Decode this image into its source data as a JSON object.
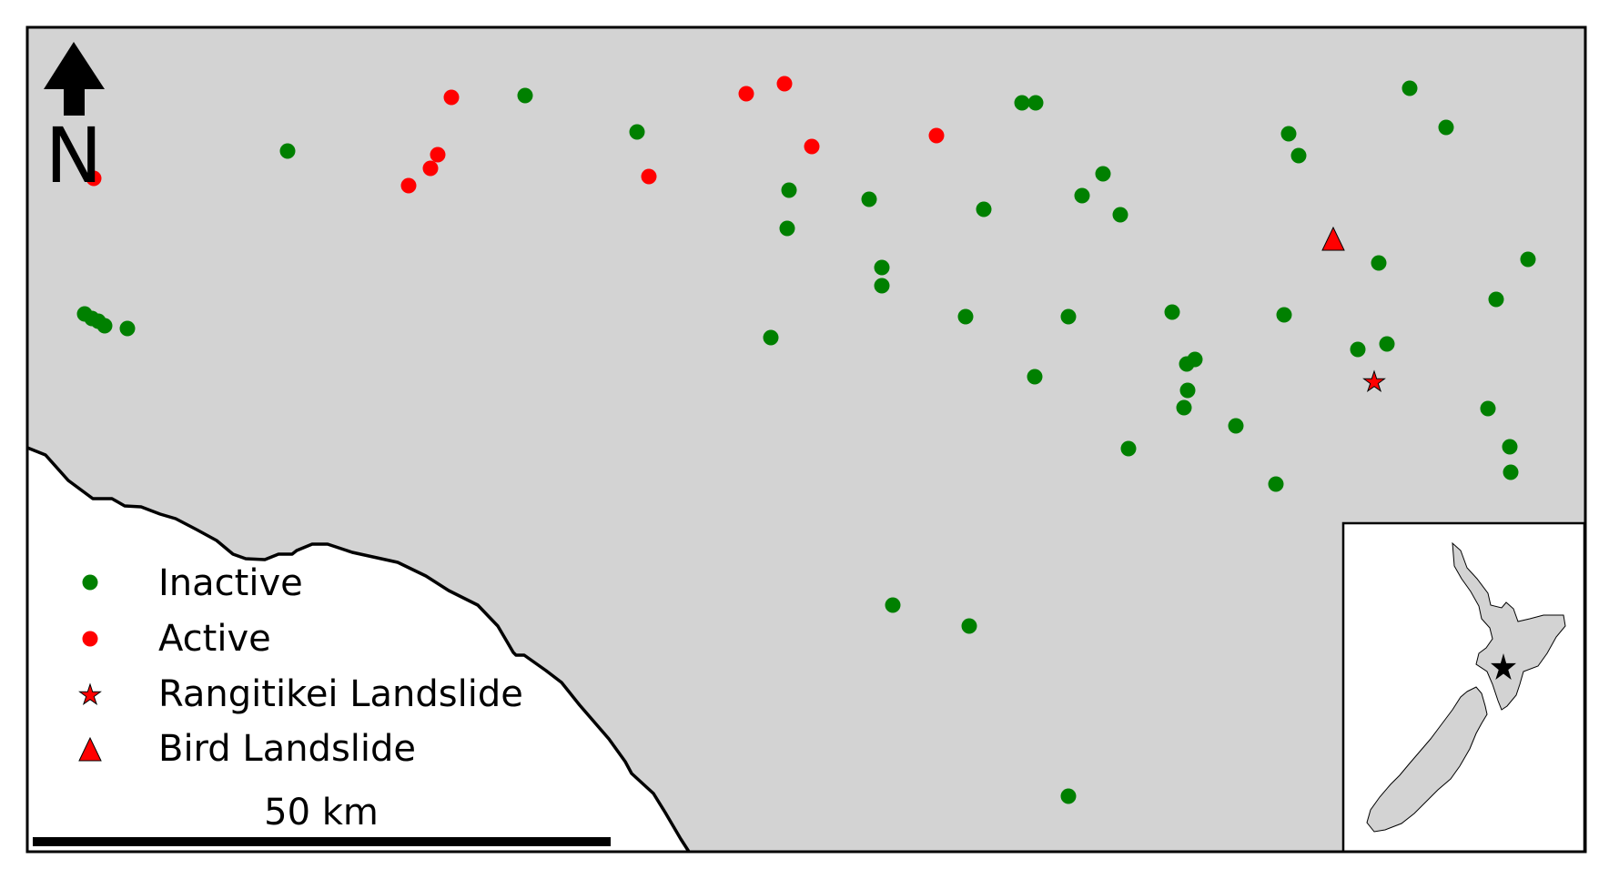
{
  "colors": {
    "land": "#d3d3d3",
    "sea": "#ffffff",
    "frame": "#000000",
    "inactive": "#008000",
    "active": "#ff0000",
    "landslide_marker": "#ff0000"
  },
  "north_arrow": {
    "label": "N"
  },
  "legend": {
    "items": [
      {
        "label": "Inactive",
        "symbol": "circle",
        "color": "#008000"
      },
      {
        "label": "Active",
        "symbol": "circle",
        "color": "#ff0000"
      },
      {
        "label": "Rangitikei Landslide",
        "symbol": "star",
        "color": "#ff0000"
      },
      {
        "label": "Bird Landslide",
        "symbol": "triangle",
        "color": "#ff0000"
      }
    ]
  },
  "scale_bar": {
    "label": "50 km",
    "distance_km": 50
  },
  "landslides": [
    {
      "name": "Rangitikei Landslide",
      "symbol": "star"
    },
    {
      "name": "Bird Landslide",
      "symbol": "triangle"
    }
  ],
  "inset": {
    "region": "New Zealand",
    "marker": "star"
  }
}
